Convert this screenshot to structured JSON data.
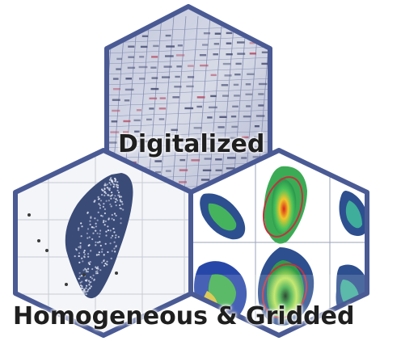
{
  "labels": {
    "top": "Digitalized",
    "bottom": "Homogeneous & Gridded"
  },
  "colors": {
    "hex_border": "#4a5a94",
    "caption": "#1f1f1f",
    "paper": "#dfe1ea",
    "map_land": "#2d4f8f",
    "map_ocean": "#ffffff",
    "heat_high": "#e53a1f",
    "heat_mid": "#f3df2a",
    "heat_low": "#2fb35a"
  },
  "icons": [
    "ledger-photo",
    "station-map",
    "gridded-maps"
  ]
}
